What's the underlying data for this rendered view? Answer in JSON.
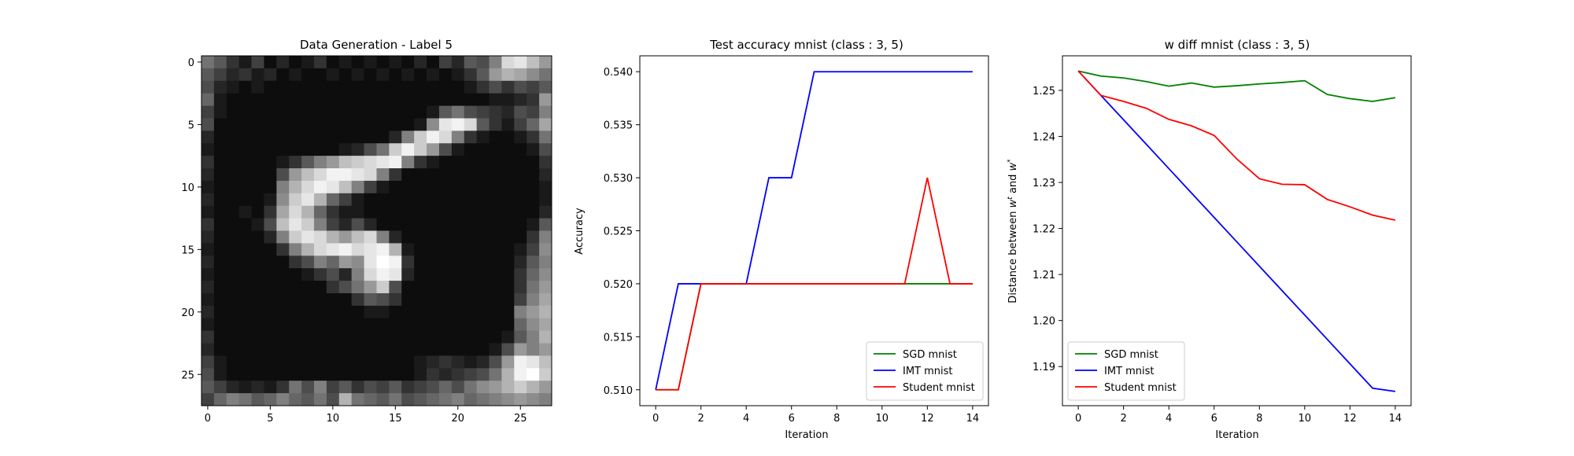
{
  "chart_data": [
    {
      "type": "heatmap",
      "title": "Data Generation - Label 5",
      "xticks": [
        0,
        5,
        10,
        15,
        20,
        25
      ],
      "yticks": [
        0,
        5,
        10,
        15,
        20,
        25
      ],
      "xlim": [
        -0.5,
        27.5
      ],
      "ylim": [
        27.5,
        -0.5
      ],
      "colormap": "gray",
      "grid_size": [
        28,
        28
      ],
      "pixels": [
        [
          0.45,
          0.35,
          0.2,
          0.1,
          0.25,
          0.05,
          0.15,
          0.05,
          0.1,
          0.2,
          0.05,
          0.1,
          0.05,
          0.1,
          0.05,
          0.1,
          0.05,
          0.15,
          0.05,
          0.25,
          0.15,
          0.35,
          0.3,
          0.5,
          0.85,
          0.9,
          0.75,
          0.6
        ],
        [
          0.35,
          0.25,
          0.15,
          0.2,
          0.1,
          0.15,
          0.05,
          0.1,
          0.05,
          0.05,
          0.1,
          0.05,
          0.1,
          0.05,
          0.1,
          0.05,
          0.1,
          0.05,
          0.1,
          0.05,
          0.1,
          0.2,
          0.35,
          0.6,
          0.7,
          0.65,
          0.55,
          0.45
        ],
        [
          0.3,
          0.15,
          0.1,
          0.05,
          0.1,
          0.05,
          0.05,
          0.05,
          0.05,
          0.05,
          0.05,
          0.05,
          0.05,
          0.05,
          0.05,
          0.05,
          0.05,
          0.05,
          0.05,
          0.05,
          0.05,
          0.1,
          0.2,
          0.3,
          0.2,
          0.3,
          0.25,
          0.35
        ],
        [
          0.4,
          0.1,
          0.05,
          0.05,
          0.05,
          0.05,
          0.05,
          0.05,
          0.05,
          0.05,
          0.05,
          0.05,
          0.05,
          0.05,
          0.05,
          0.05,
          0.05,
          0.05,
          0.05,
          0.05,
          0.05,
          0.05,
          0.05,
          0.1,
          0.1,
          0.15,
          0.2,
          0.6
        ],
        [
          0.25,
          0.1,
          0.05,
          0.05,
          0.05,
          0.05,
          0.05,
          0.05,
          0.05,
          0.05,
          0.05,
          0.05,
          0.05,
          0.05,
          0.05,
          0.05,
          0.05,
          0.05,
          0.1,
          0.35,
          0.45,
          0.3,
          0.25,
          0.2,
          0.15,
          0.3,
          0.25,
          0.5
        ],
        [
          0.3,
          0.05,
          0.05,
          0.05,
          0.05,
          0.05,
          0.05,
          0.05,
          0.05,
          0.05,
          0.05,
          0.05,
          0.05,
          0.05,
          0.05,
          0.05,
          0.05,
          0.1,
          0.55,
          0.9,
          0.95,
          0.85,
          0.35,
          0.2,
          0.1,
          0.25,
          0.4,
          0.65
        ],
        [
          0.15,
          0.05,
          0.05,
          0.05,
          0.05,
          0.05,
          0.05,
          0.05,
          0.05,
          0.05,
          0.05,
          0.05,
          0.05,
          0.05,
          0.05,
          0.15,
          0.5,
          0.8,
          0.95,
          0.85,
          0.5,
          0.2,
          0.1,
          0.05,
          0.05,
          0.1,
          0.2,
          0.45
        ],
        [
          0.1,
          0.05,
          0.05,
          0.05,
          0.05,
          0.05,
          0.05,
          0.05,
          0.05,
          0.05,
          0.05,
          0.1,
          0.15,
          0.3,
          0.45,
          0.8,
          0.95,
          0.8,
          0.6,
          0.3,
          0.1,
          0.05,
          0.05,
          0.05,
          0.05,
          0.05,
          0.1,
          0.3
        ],
        [
          0.2,
          0.05,
          0.05,
          0.05,
          0.05,
          0.05,
          0.1,
          0.2,
          0.35,
          0.5,
          0.6,
          0.75,
          0.8,
          0.85,
          0.9,
          0.95,
          0.5,
          0.2,
          0.1,
          0.05,
          0.05,
          0.05,
          0.05,
          0.05,
          0.05,
          0.05,
          0.05,
          0.2
        ],
        [
          0.15,
          0.05,
          0.05,
          0.05,
          0.05,
          0.05,
          0.3,
          0.6,
          0.75,
          0.85,
          0.95,
          0.95,
          0.9,
          0.85,
          0.5,
          0.2,
          0.05,
          0.05,
          0.05,
          0.05,
          0.05,
          0.05,
          0.05,
          0.05,
          0.05,
          0.05,
          0.05,
          0.15
        ],
        [
          0.1,
          0.05,
          0.05,
          0.05,
          0.05,
          0.05,
          0.5,
          0.7,
          0.85,
          0.95,
          0.9,
          0.75,
          0.5,
          0.25,
          0.1,
          0.05,
          0.05,
          0.05,
          0.05,
          0.05,
          0.05,
          0.05,
          0.05,
          0.05,
          0.05,
          0.05,
          0.05,
          0.1
        ],
        [
          0.15,
          0.05,
          0.05,
          0.05,
          0.05,
          0.1,
          0.55,
          0.8,
          0.9,
          0.7,
          0.4,
          0.25,
          0.1,
          0.05,
          0.05,
          0.05,
          0.05,
          0.05,
          0.05,
          0.05,
          0.05,
          0.05,
          0.05,
          0.05,
          0.05,
          0.05,
          0.05,
          0.1
        ],
        [
          0.1,
          0.05,
          0.05,
          0.1,
          0.05,
          0.2,
          0.65,
          0.85,
          0.7,
          0.4,
          0.2,
          0.1,
          0.1,
          0.05,
          0.05,
          0.05,
          0.05,
          0.05,
          0.05,
          0.05,
          0.05,
          0.05,
          0.05,
          0.05,
          0.05,
          0.05,
          0.05,
          0.15
        ],
        [
          0.2,
          0.05,
          0.05,
          0.05,
          0.1,
          0.3,
          0.75,
          0.9,
          0.8,
          0.5,
          0.25,
          0.15,
          0.3,
          0.15,
          0.05,
          0.05,
          0.05,
          0.05,
          0.05,
          0.05,
          0.05,
          0.05,
          0.05,
          0.05,
          0.05,
          0.05,
          0.1,
          0.35
        ],
        [
          0.15,
          0.05,
          0.05,
          0.05,
          0.05,
          0.15,
          0.5,
          0.8,
          0.9,
          0.85,
          0.7,
          0.6,
          0.75,
          0.85,
          0.5,
          0.15,
          0.05,
          0.05,
          0.05,
          0.05,
          0.05,
          0.05,
          0.05,
          0.05,
          0.05,
          0.05,
          0.2,
          0.5
        ],
        [
          0.1,
          0.05,
          0.05,
          0.05,
          0.05,
          0.05,
          0.2,
          0.5,
          0.7,
          0.85,
          0.9,
          0.95,
          0.85,
          0.9,
          0.95,
          0.7,
          0.1,
          0.05,
          0.05,
          0.05,
          0.05,
          0.05,
          0.05,
          0.05,
          0.05,
          0.1,
          0.25,
          0.55
        ],
        [
          0.15,
          0.05,
          0.05,
          0.05,
          0.05,
          0.05,
          0.05,
          0.2,
          0.3,
          0.5,
          0.4,
          0.6,
          0.55,
          0.9,
          1.0,
          0.95,
          0.2,
          0.05,
          0.05,
          0.05,
          0.05,
          0.05,
          0.05,
          0.05,
          0.05,
          0.15,
          0.35,
          0.5
        ],
        [
          0.1,
          0.05,
          0.05,
          0.05,
          0.05,
          0.05,
          0.05,
          0.05,
          0.1,
          0.2,
          0.3,
          0.15,
          0.5,
          0.85,
          0.95,
          0.9,
          0.15,
          0.05,
          0.05,
          0.05,
          0.05,
          0.05,
          0.05,
          0.05,
          0.05,
          0.2,
          0.4,
          0.55
        ],
        [
          0.15,
          0.05,
          0.05,
          0.05,
          0.05,
          0.05,
          0.05,
          0.05,
          0.05,
          0.05,
          0.2,
          0.3,
          0.45,
          0.6,
          0.8,
          0.3,
          0.05,
          0.05,
          0.05,
          0.05,
          0.05,
          0.05,
          0.05,
          0.05,
          0.05,
          0.2,
          0.45,
          0.6
        ],
        [
          0.1,
          0.05,
          0.05,
          0.05,
          0.05,
          0.05,
          0.05,
          0.05,
          0.05,
          0.05,
          0.05,
          0.05,
          0.2,
          0.35,
          0.3,
          0.2,
          0.05,
          0.05,
          0.05,
          0.05,
          0.05,
          0.05,
          0.05,
          0.05,
          0.05,
          0.25,
          0.5,
          0.65
        ],
        [
          0.15,
          0.05,
          0.05,
          0.05,
          0.05,
          0.05,
          0.05,
          0.05,
          0.05,
          0.05,
          0.05,
          0.05,
          0.05,
          0.1,
          0.1,
          0.05,
          0.05,
          0.05,
          0.05,
          0.05,
          0.05,
          0.05,
          0.05,
          0.05,
          0.05,
          0.5,
          0.6,
          0.7
        ],
        [
          0.1,
          0.05,
          0.05,
          0.05,
          0.05,
          0.05,
          0.05,
          0.05,
          0.05,
          0.05,
          0.05,
          0.05,
          0.05,
          0.05,
          0.05,
          0.05,
          0.05,
          0.05,
          0.05,
          0.05,
          0.05,
          0.05,
          0.05,
          0.05,
          0.05,
          0.4,
          0.55,
          0.65
        ],
        [
          0.2,
          0.05,
          0.05,
          0.05,
          0.05,
          0.05,
          0.05,
          0.05,
          0.05,
          0.05,
          0.05,
          0.05,
          0.05,
          0.05,
          0.05,
          0.05,
          0.05,
          0.05,
          0.05,
          0.05,
          0.05,
          0.05,
          0.05,
          0.05,
          0.1,
          0.35,
          0.5,
          0.7
        ],
        [
          0.15,
          0.05,
          0.05,
          0.05,
          0.05,
          0.05,
          0.05,
          0.05,
          0.05,
          0.05,
          0.05,
          0.05,
          0.05,
          0.05,
          0.05,
          0.05,
          0.05,
          0.05,
          0.05,
          0.05,
          0.05,
          0.05,
          0.05,
          0.1,
          0.3,
          0.6,
          0.5,
          0.6
        ],
        [
          0.25,
          0.1,
          0.05,
          0.05,
          0.05,
          0.05,
          0.05,
          0.05,
          0.05,
          0.05,
          0.05,
          0.05,
          0.05,
          0.05,
          0.05,
          0.05,
          0.05,
          0.1,
          0.15,
          0.2,
          0.15,
          0.1,
          0.15,
          0.3,
          0.6,
          0.95,
          0.9,
          0.75
        ],
        [
          0.3,
          0.1,
          0.05,
          0.05,
          0.05,
          0.05,
          0.05,
          0.05,
          0.05,
          0.05,
          0.05,
          0.05,
          0.05,
          0.05,
          0.05,
          0.05,
          0.05,
          0.1,
          0.2,
          0.15,
          0.2,
          0.25,
          0.3,
          0.45,
          0.7,
          0.95,
          1.0,
          0.8
        ],
        [
          0.35,
          0.25,
          0.15,
          0.1,
          0.15,
          0.1,
          0.2,
          0.45,
          0.3,
          0.5,
          0.25,
          0.35,
          0.2,
          0.3,
          0.25,
          0.35,
          0.2,
          0.25,
          0.3,
          0.4,
          0.3,
          0.45,
          0.55,
          0.6,
          0.7,
          0.8,
          0.7,
          0.6
        ],
        [
          0.25,
          0.4,
          0.5,
          0.45,
          0.35,
          0.4,
          0.5,
          0.4,
          0.35,
          0.45,
          0.3,
          0.7,
          0.45,
          0.4,
          0.35,
          0.45,
          0.3,
          0.35,
          0.4,
          0.45,
          0.5,
          0.4,
          0.45,
          0.5,
          0.55,
          0.6,
          0.55,
          0.5
        ]
      ]
    },
    {
      "type": "line",
      "title": "Test accuracy mnist (class : 3, 5)",
      "xlabel": "Iteration",
      "ylabel": "Accuracy",
      "xlim": [
        -0.7,
        14.7
      ],
      "ylim": [
        0.5085,
        0.5415
      ],
      "xticks": [
        0,
        2,
        4,
        6,
        8,
        10,
        12,
        14
      ],
      "yticks": [
        0.51,
        0.515,
        0.52,
        0.525,
        0.53,
        0.535,
        0.54
      ],
      "ytick_labels": [
        "0.510",
        "0.515",
        "0.520",
        "0.525",
        "0.530",
        "0.535",
        "0.540"
      ],
      "legend_position": "lower-right",
      "x": [
        0,
        1,
        2,
        3,
        4,
        5,
        6,
        7,
        8,
        9,
        10,
        11,
        12,
        13,
        14
      ],
      "series": [
        {
          "name": "SGD mnist",
          "color": "#008000",
          "values": [
            0.51,
            0.51,
            0.52,
            0.52,
            0.52,
            0.52,
            0.52,
            0.52,
            0.52,
            0.52,
            0.52,
            0.52,
            0.52,
            0.52,
            0.52
          ]
        },
        {
          "name": "IMT mnist",
          "color": "#0000ff",
          "values": [
            0.51,
            0.52,
            0.52,
            0.52,
            0.52,
            0.53,
            0.53,
            0.54,
            0.54,
            0.54,
            0.54,
            0.54,
            0.54,
            0.54,
            0.54
          ]
        },
        {
          "name": "Student mnist",
          "color": "#ff0000",
          "values": [
            0.51,
            0.51,
            0.52,
            0.52,
            0.52,
            0.52,
            0.52,
            0.52,
            0.52,
            0.52,
            0.52,
            0.52,
            0.53,
            0.52,
            0.52
          ]
        }
      ]
    },
    {
      "type": "line",
      "title": "w diff mnist (class : 3, 5)",
      "xlabel": "Iteration",
      "ylabel": "Distance between w^t and w^*",
      "xlim": [
        -0.7,
        14.7
      ],
      "ylim": [
        1.1815,
        1.2575
      ],
      "xticks": [
        0,
        2,
        4,
        6,
        8,
        10,
        12,
        14
      ],
      "yticks": [
        1.19,
        1.2,
        1.21,
        1.22,
        1.23,
        1.24,
        1.25
      ],
      "ytick_labels": [
        "1.19",
        "1.20",
        "1.21",
        "1.22",
        "1.23",
        "1.24",
        "1.25"
      ],
      "legend_position": "lower-left",
      "x": [
        0,
        1,
        2,
        3,
        4,
        5,
        6,
        7,
        8,
        9,
        10,
        11,
        12,
        13,
        14
      ],
      "series": [
        {
          "name": "SGD mnist",
          "color": "#008000",
          "values": [
            1.2542,
            1.2531,
            1.2527,
            1.2519,
            1.2509,
            1.2516,
            1.2507,
            1.251,
            1.2514,
            1.2517,
            1.2521,
            1.2491,
            1.2482,
            1.2476,
            1.2484
          ]
        },
        {
          "name": "IMT mnist",
          "color": "#0000ff",
          "values": [
            1.2542,
            1.2489,
            1.2436,
            1.2383,
            1.233,
            1.2277,
            1.2224,
            1.2171,
            1.2118,
            1.2065,
            1.2012,
            1.1959,
            1.1906,
            1.1853,
            1.1846
          ]
        },
        {
          "name": "Student mnist",
          "color": "#ff0000",
          "values": [
            1.2542,
            1.2489,
            1.2476,
            1.2461,
            1.2437,
            1.2423,
            1.2402,
            1.2351,
            1.2308,
            1.2296,
            1.2295,
            1.2263,
            1.2247,
            1.2229,
            1.2218
          ]
        }
      ]
    }
  ]
}
